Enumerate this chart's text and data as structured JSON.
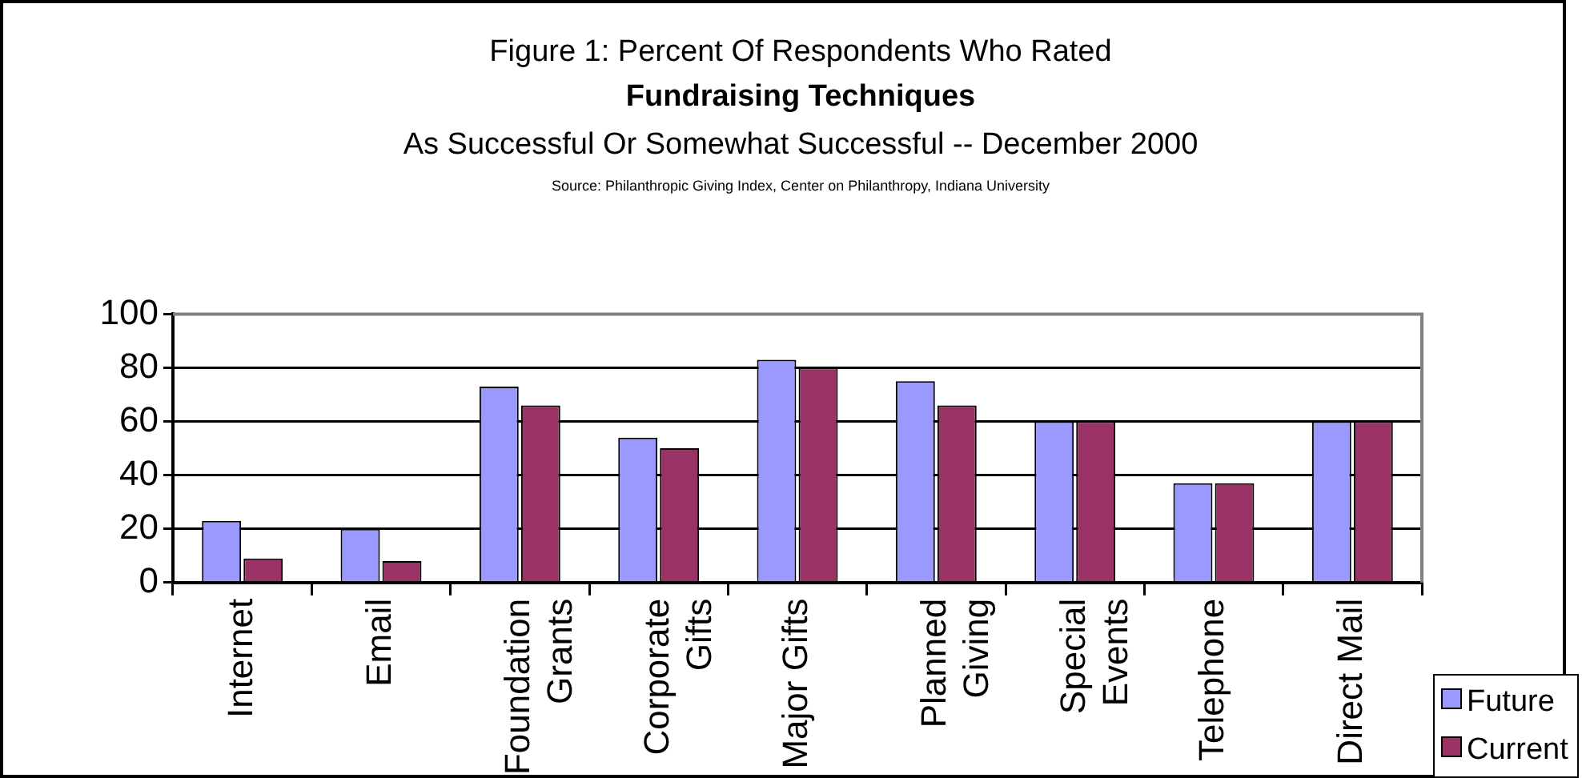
{
  "chart_data": {
    "type": "bar",
    "title": "Figure 1: Percent Of Respondents Who Rated\nFundraising Techniques",
    "subtitle": "As Successful Or Somewhat Successful -- December 2000",
    "annotations": [
      "Source: Philanthropic Giving Index, Center on Philanthropy, Indiana University"
    ],
    "categories": [
      "Internet",
      "Email",
      "Foundation Grants",
      "Corporate Gifts",
      "Major Gifts",
      "Planned Giving",
      "Special Events",
      "Telephone",
      "Direct Mail"
    ],
    "series": [
      {
        "name": "Future",
        "color": "#9999ff",
        "values": [
          23,
          20,
          73,
          54,
          83,
          75,
          60,
          37,
          60
        ]
      },
      {
        "name": "Current",
        "color": "#993366",
        "values": [
          9,
          8,
          66,
          50,
          80,
          66,
          60,
          37,
          60
        ]
      }
    ],
    "ylim": [
      0,
      100
    ],
    "yticks": [
      0,
      20,
      40,
      60,
      80,
      100
    ],
    "grid": "y",
    "legend": "bottom right"
  }
}
